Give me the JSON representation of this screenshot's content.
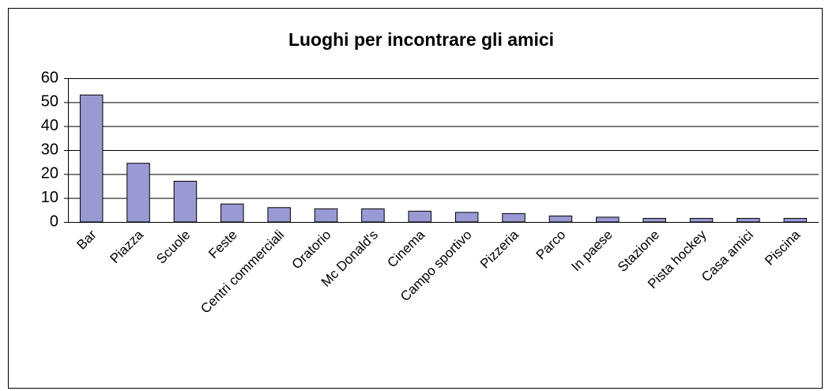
{
  "chart_data": {
    "type": "bar",
    "title": "Luoghi per incontrare gli amici",
    "categories": [
      "Bar",
      "Piazza",
      "Scuole",
      "Feste",
      "Centri commerciali",
      "Oratorio",
      "Mc Donald's",
      "Cinema",
      "Campo sportivo",
      "Pizzeria",
      "Parco",
      "In paese",
      "Stazione",
      "Pista hockey",
      "Casa amici",
      "Piscina"
    ],
    "values": [
      53,
      24.5,
      17,
      7.5,
      6,
      5.5,
      5.5,
      4.5,
      4,
      3.5,
      2.5,
      2,
      1.5,
      1.5,
      1.5,
      1.5
    ],
    "color": "#9999d4",
    "ylim": [
      0,
      60
    ],
    "yticks": [
      0,
      10,
      20,
      30,
      40,
      50,
      60
    ],
    "grid": true
  }
}
